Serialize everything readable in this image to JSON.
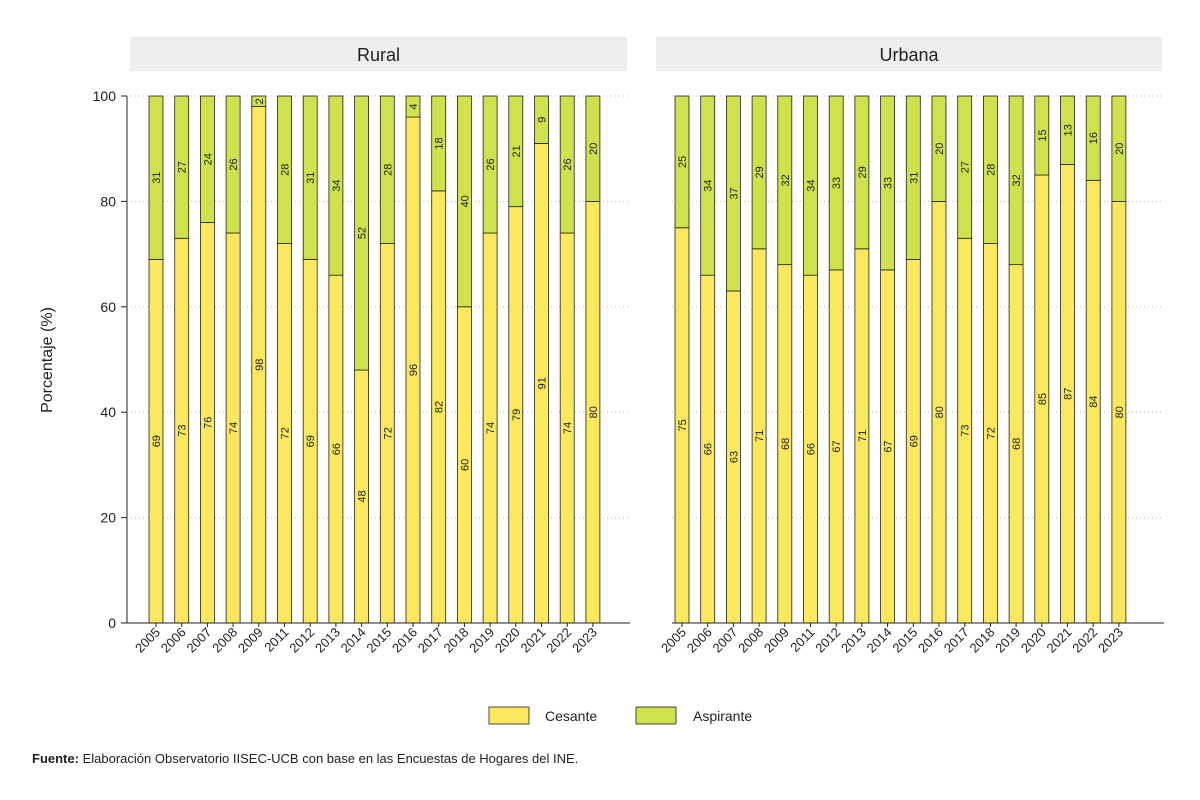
{
  "colors": {
    "cesante": "#fbe85c",
    "aspirante": "#cfe24b",
    "strip": "#eeeeee",
    "grid": "#bdbdbd"
  },
  "source": {
    "label": "Fuente:",
    "text": "Elaboración Observatorio IISEC-UCB con base en las Encuestas de Hogares del INE."
  },
  "chart_data": {
    "type": "bar",
    "stacked": true,
    "ylabel": "Porcentaje (%)",
    "ylim": [
      0,
      100
    ],
    "yticks": [
      0,
      20,
      40,
      60,
      80,
      100
    ],
    "grid": true,
    "legend": {
      "placement": "bottom-center",
      "entries": [
        "Cesante",
        "Aspirante"
      ]
    },
    "categories": [
      "2005",
      "2006",
      "2007",
      "2008",
      "2009",
      "2011",
      "2012",
      "2013",
      "2014",
      "2015",
      "2016",
      "2017",
      "2018",
      "2019",
      "2020",
      "2021",
      "2022",
      "2023"
    ],
    "panels": [
      {
        "title": "Rural",
        "series": [
          {
            "name": "Cesante",
            "values": [
              69,
              73,
              76,
              74,
              98,
              72,
              69,
              66,
              48,
              72,
              96,
              82,
              60,
              74,
              79,
              91,
              74,
              80
            ]
          },
          {
            "name": "Aspirante",
            "values": [
              31,
              27,
              24,
              26,
              2,
              28,
              31,
              34,
              52,
              28,
              4,
              18,
              40,
              26,
              21,
              9,
              26,
              20
            ]
          }
        ]
      },
      {
        "title": "Urbana",
        "series": [
          {
            "name": "Cesante",
            "values": [
              75,
              66,
              63,
              71,
              68,
              66,
              67,
              71,
              67,
              69,
              80,
              73,
              72,
              68,
              85,
              87,
              84,
              80
            ]
          },
          {
            "name": "Aspirante",
            "values": [
              25,
              34,
              37,
              29,
              32,
              34,
              33,
              29,
              33,
              31,
              20,
              27,
              28,
              32,
              15,
              13,
              16,
              20
            ]
          }
        ]
      }
    ]
  }
}
